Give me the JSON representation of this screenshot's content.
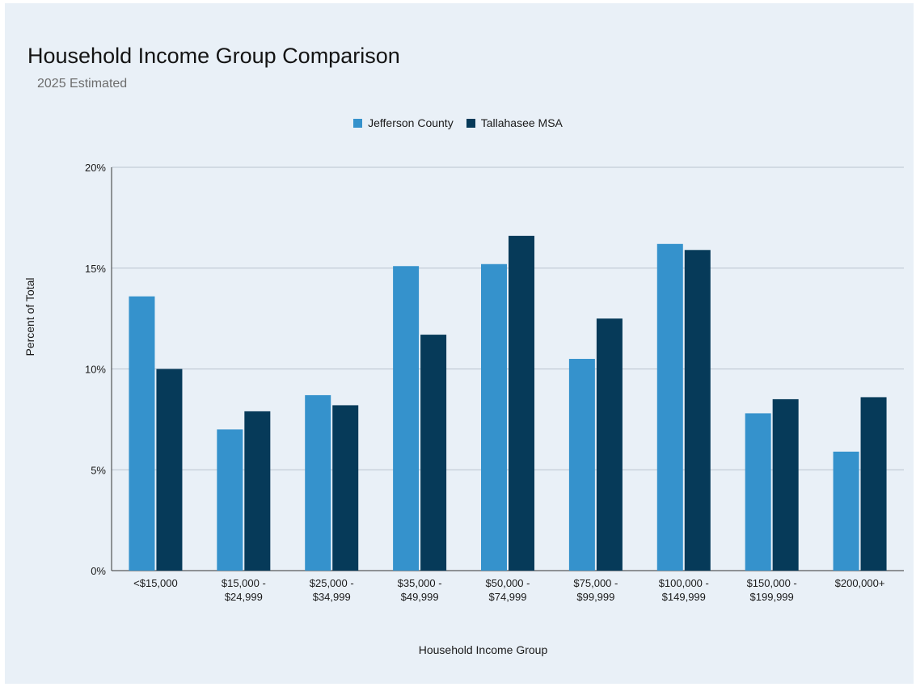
{
  "chart_data": {
    "type": "bar",
    "title": "Household Income Group Comparison",
    "subtitle": "2025 Estimated",
    "xlabel": "Household Income Group",
    "ylabel": "Percent of Total",
    "ylim": [
      0,
      20
    ],
    "yticks": [
      0,
      5,
      10,
      15,
      20
    ],
    "ytick_labels": [
      "0%",
      "5%",
      "10%",
      "15%",
      "20%"
    ],
    "grid": true,
    "legend_position": "top-center",
    "categories": [
      [
        "<$15,000"
      ],
      [
        "$15,000 -",
        "$24,999"
      ],
      [
        "$25,000 -",
        "$34,999"
      ],
      [
        "$35,000 -",
        "$49,999"
      ],
      [
        "$50,000 -",
        "$74,999"
      ],
      [
        "$75,000 -",
        "$99,999"
      ],
      [
        "$100,000 -",
        "$149,999"
      ],
      [
        "$150,000 -",
        "$199,999"
      ],
      [
        "$200,000+"
      ]
    ],
    "series": [
      {
        "name": "Jefferson County",
        "color": "#3592cc",
        "values": [
          13.6,
          7.0,
          8.7,
          15.1,
          15.2,
          10.5,
          16.2,
          7.8,
          5.9
        ]
      },
      {
        "name": "Tallahasee MSA",
        "color": "#063a59",
        "values": [
          10.0,
          7.9,
          8.2,
          11.7,
          16.6,
          12.5,
          15.9,
          8.5,
          8.6
        ]
      }
    ]
  }
}
